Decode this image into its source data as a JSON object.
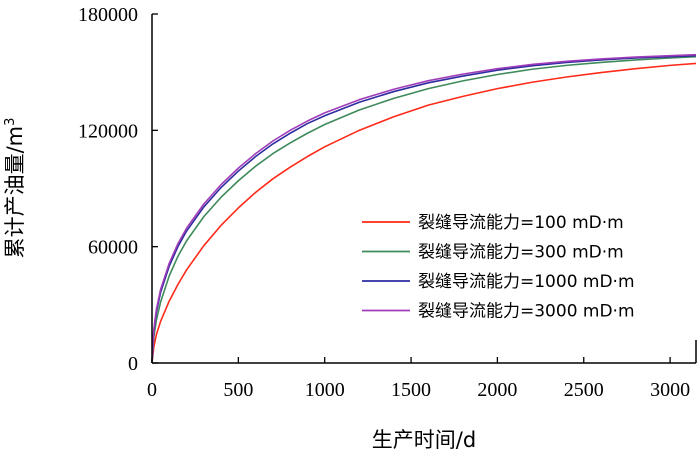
{
  "chart_data": {
    "type": "line",
    "title": "",
    "xlabel": "生产时间/d",
    "ylabel": "累计产油量/m",
    "ylabel_superscript": "3",
    "xlim": [
      0,
      3150
    ],
    "ylim": [
      0,
      180000
    ],
    "xticks": [
      0,
      500,
      1000,
      1500,
      2000,
      2500,
      3000
    ],
    "yticks": [
      0,
      60000,
      120000,
      180000
    ],
    "xtick_labels": [
      "0",
      "500",
      "1000",
      "1500",
      "2000",
      "2500",
      "3000"
    ],
    "ytick_labels": [
      "0",
      "60000",
      "120000",
      "180000"
    ],
    "grid": false,
    "legend_position": "center-right",
    "series": [
      {
        "name": "裂缝导流能力=100 mD·m",
        "color": "#ff2a1a",
        "x": [
          0,
          10,
          25,
          50,
          100,
          150,
          200,
          300,
          400,
          500,
          600,
          700,
          800,
          900,
          1000,
          1200,
          1400,
          1600,
          1800,
          2000,
          2200,
          2400,
          2600,
          2800,
          3000,
          3150
        ],
        "y": [
          0,
          8000,
          14500,
          21500,
          32000,
          40500,
          48000,
          60500,
          71000,
          80000,
          88000,
          95000,
          101000,
          106500,
          111500,
          120000,
          127000,
          133000,
          137500,
          141500,
          144800,
          147500,
          149800,
          151800,
          153500,
          154500
        ]
      },
      {
        "name": "裂缝导流能力=300 mD·m",
        "color": "#3f8a5a",
        "x": [
          0,
          10,
          25,
          50,
          100,
          150,
          200,
          300,
          400,
          500,
          600,
          700,
          800,
          900,
          1000,
          1200,
          1400,
          1600,
          1800,
          2000,
          2200,
          2400,
          2600,
          2800,
          3000,
          3150
        ],
        "y": [
          0,
          13000,
          22000,
          31500,
          45000,
          55000,
          63000,
          75500,
          85500,
          94000,
          101500,
          108000,
          113500,
          118500,
          123000,
          130500,
          136500,
          141500,
          145500,
          148800,
          151500,
          153500,
          155000,
          156300,
          157300,
          158000
        ]
      },
      {
        "name": "裂缝导流能力=1000 mD·m",
        "color": "#2e2ca0",
        "x": [
          0,
          10,
          25,
          50,
          100,
          150,
          200,
          300,
          400,
          500,
          600,
          700,
          800,
          900,
          1000,
          1200,
          1400,
          1600,
          1800,
          2000,
          2200,
          2400,
          2600,
          2800,
          3000,
          3150
        ],
        "y": [
          0,
          16000,
          26000,
          36500,
          50000,
          60000,
          68000,
          80500,
          90500,
          99000,
          106500,
          113000,
          118500,
          123500,
          127500,
          134500,
          140000,
          144500,
          148000,
          151000,
          153300,
          155000,
          156300,
          157300,
          158000,
          158500
        ]
      },
      {
        "name": "裂缝导流能力=3000 mD·m",
        "color": "#a03cb8",
        "x": [
          0,
          10,
          25,
          50,
          100,
          150,
          200,
          300,
          400,
          500,
          600,
          700,
          800,
          900,
          1000,
          1200,
          1400,
          1600,
          1800,
          2000,
          2200,
          2400,
          2600,
          2800,
          3000,
          3150
        ],
        "y": [
          0,
          17000,
          27500,
          38000,
          51500,
          61500,
          69500,
          82000,
          92000,
          100500,
          108000,
          114500,
          120000,
          124800,
          129000,
          135800,
          141200,
          145600,
          149000,
          151800,
          154000,
          155600,
          156800,
          157800,
          158500,
          159000
        ]
      }
    ]
  }
}
